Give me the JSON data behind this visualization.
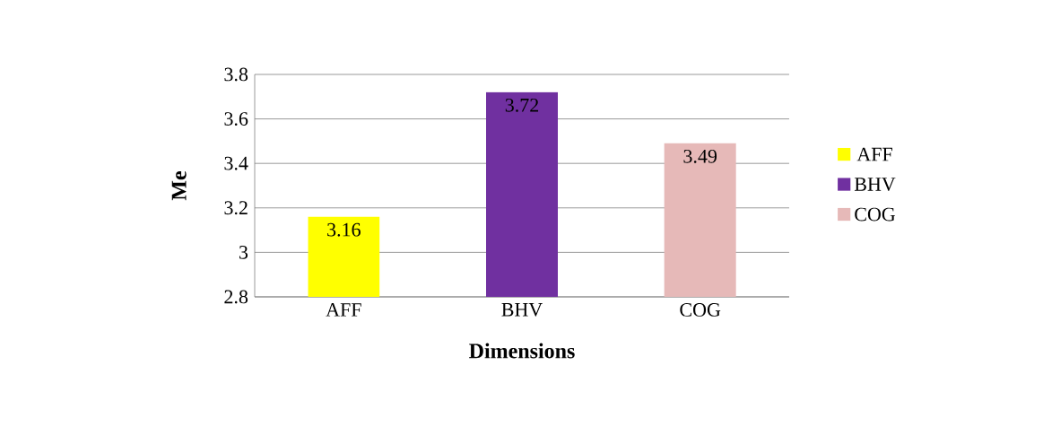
{
  "chart_data": {
    "type": "bar",
    "xlabel": "Dimensions",
    "ylabel": "Me",
    "categories": [
      "AFF",
      "BHV",
      "COG"
    ],
    "series": [
      {
        "name": "AFF",
        "color": "#ffff00",
        "values": [
          3.16,
          null,
          null
        ]
      },
      {
        "name": "BHV",
        "color": "#7030a0",
        "values": [
          null,
          3.72,
          null
        ]
      },
      {
        "name": "COG",
        "color": "#e6b9b8",
        "values": [
          null,
          null,
          3.49
        ]
      }
    ],
    "ylim": [
      2.8,
      3.8
    ],
    "yticks": [
      2.8,
      3,
      3.2,
      3.4,
      3.6,
      3.8
    ],
    "grid": "y",
    "legend": "right",
    "data_labels": true
  }
}
